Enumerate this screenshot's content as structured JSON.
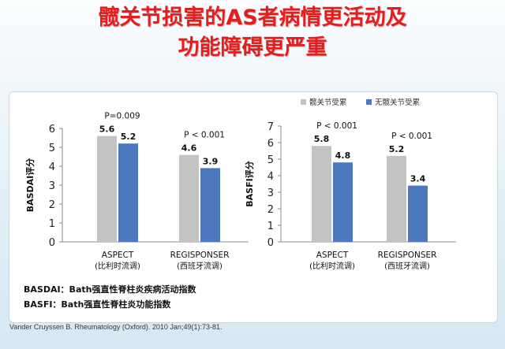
{
  "header": {
    "title_line1": "髋关节损害的AS者病情更活动及",
    "title_line2": "功能障碍更严重"
  },
  "legend": {
    "series1": "髋关节受累",
    "series2": "无髋关节受累",
    "series1_color": "#c3c3c3",
    "series2_color": "#4c78bd"
  },
  "notes": {
    "basdai": "BASDAI：Bath强直性脊柱炎疾病活动指数",
    "basfi": "BASFI：Bath强直性脊柱炎功能指数"
  },
  "citation": "Vander Cruyssen B. Rheumatology (Oxford). 2010 Jan;49(1):73-81.",
  "chart_data": [
    {
      "type": "bar",
      "ylabel": "BASDAI评分",
      "ylim": [
        0,
        6
      ],
      "yticks": [
        0,
        1,
        2,
        3,
        4,
        5,
        6
      ],
      "categories": [
        "ASPECT",
        "REGISPONSER"
      ],
      "category_sublabels": [
        "(比利时流调)",
        "(西班牙流调)"
      ],
      "series": [
        {
          "name": "髋关节受累",
          "values": [
            5.6,
            4.6
          ]
        },
        {
          "name": "无髋关节受累",
          "values": [
            5.2,
            3.9
          ]
        }
      ],
      "value_labels": [
        [
          "5.6",
          "4.6"
        ],
        [
          "5.2",
          "3.9"
        ]
      ],
      "pvalues": [
        "P=0.009",
        "P < 0.001"
      ],
      "grid": false,
      "legend": "none"
    },
    {
      "type": "bar",
      "ylabel": "BASFI评分",
      "ylim": [
        0,
        7
      ],
      "yticks": [
        0,
        1,
        2,
        3,
        4,
        5,
        6,
        7
      ],
      "categories": [
        "ASPECT",
        "REGISPONSER"
      ],
      "category_sublabels": [
        "(比利时流调)",
        "(西班牙流调)"
      ],
      "series": [
        {
          "name": "髋关节受累",
          "values": [
            5.8,
            5.2
          ]
        },
        {
          "name": "无髋关节受累",
          "values": [
            4.8,
            3.4
          ]
        }
      ],
      "value_labels": [
        [
          "5.8",
          "5.2"
        ],
        [
          "4.8",
          "3.4"
        ]
      ],
      "pvalues": [
        "P < 0.001",
        "P < 0.001"
      ],
      "grid": false,
      "legend": "top"
    }
  ]
}
